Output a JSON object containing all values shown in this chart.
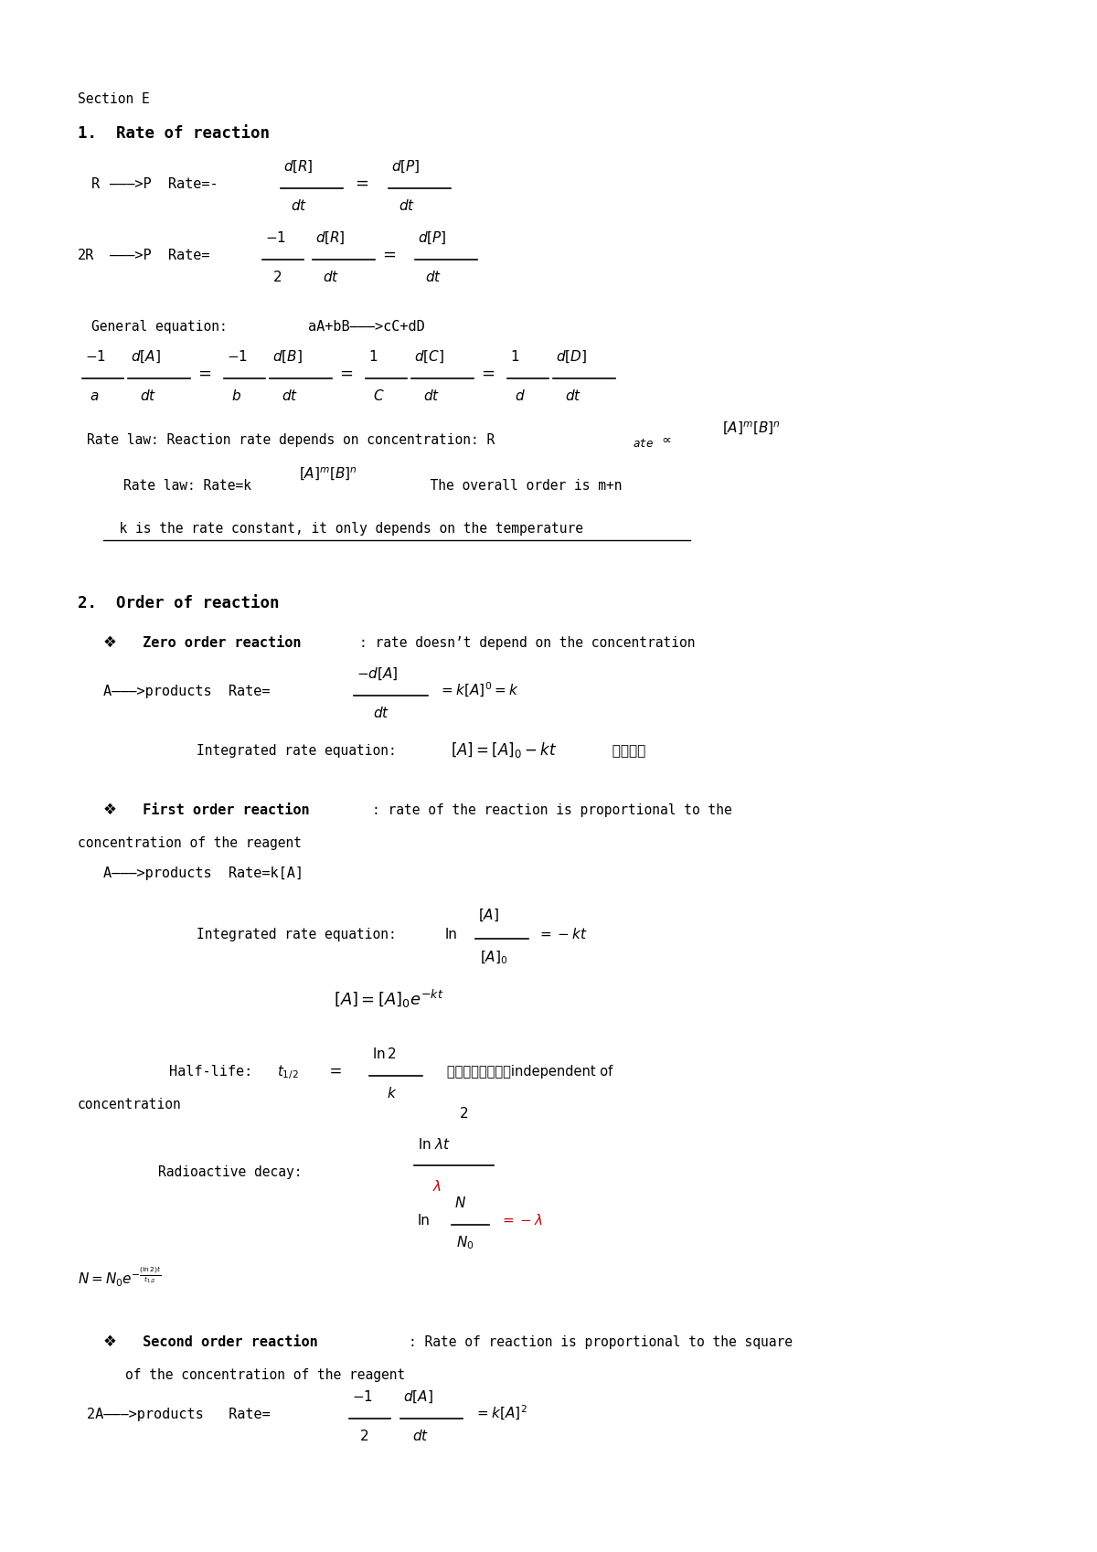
{
  "bg_color": "#ffffff",
  "text_color": "#000000",
  "red_color": "#cc0000",
  "fig_width": 12.0,
  "fig_height": 16.98,
  "dpi": 100,
  "lm": 0.85,
  "section_e": "Section E",
  "title1": "1.  Rate of reaction",
  "title2": "2.  Order of reaction"
}
